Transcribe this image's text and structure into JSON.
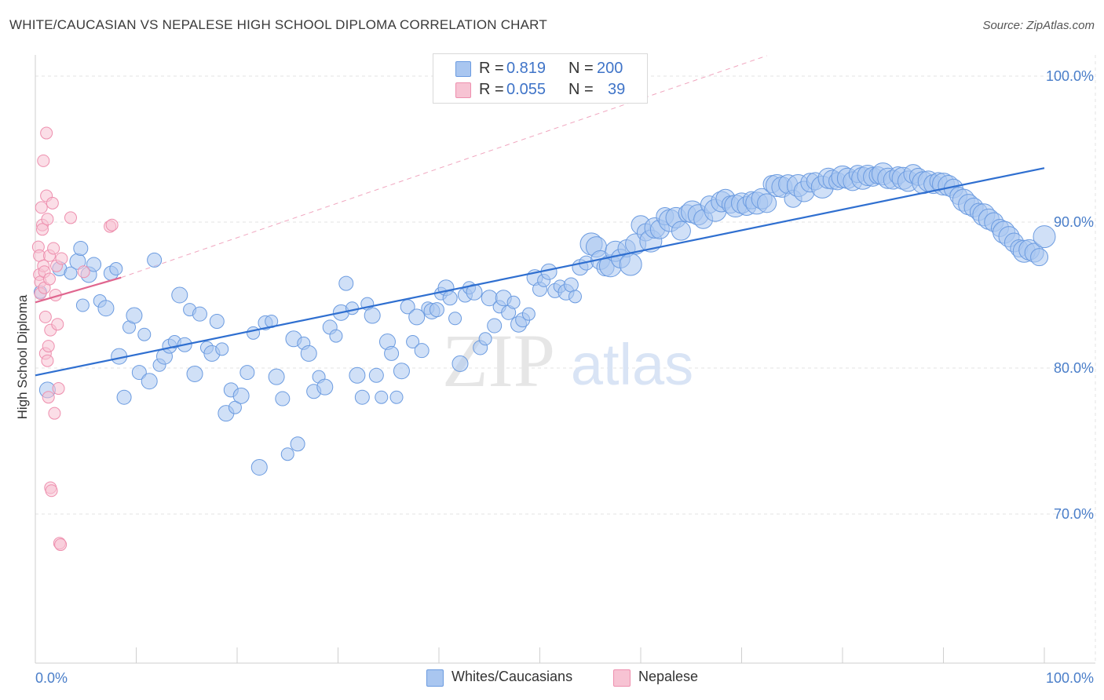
{
  "title": "WHITE/CAUCASIAN VS NEPALESE HIGH SCHOOL DIPLOMA CORRELATION CHART",
  "source": "Source: ZipAtlas.com",
  "watermark": {
    "zip": "ZIP",
    "atlas": "atlas"
  },
  "legend": {
    "rows": [
      {
        "r_label": "R =",
        "r_value": "0.819",
        "n_label": "N =",
        "n_value": "200",
        "color": "#7aa6e6"
      },
      {
        "r_label": "R =",
        "r_value": "0.055",
        "n_label": "N =",
        "n_value": "39",
        "color": "#f2a3bd"
      }
    ]
  },
  "bottom_legend": [
    "Whites/Caucasians",
    "Nepalese"
  ],
  "colors": {
    "blue_fill": "#a9c6f0",
    "blue_stroke": "#6b9be0",
    "blue_line": "#2f6fd0",
    "pink_fill": "#f7c3d3",
    "pink_stroke": "#ee8fae",
    "pink_line": "#e0668f",
    "grid": "#e3e3e3",
    "tick_text": "#4a7ec9"
  },
  "chart_data": {
    "type": "scatter",
    "title": "WHITE/CAUCASIAN VS NEPALESE HIGH SCHOOL DIPLOMA CORRELATION CHART",
    "xlabel": "",
    "ylabel": "High School Diploma",
    "xlim": [
      0,
      100
    ],
    "ylim": [
      60,
      101.5
    ],
    "x_tick_labels": [
      "0.0%",
      "100.0%"
    ],
    "y_ticks": [
      70,
      80,
      90,
      100
    ],
    "y_tick_labels": [
      "70.0%",
      "80.0%",
      "90.0%",
      "100.0%"
    ],
    "grid": true,
    "legend_position": "top-center",
    "series": [
      {
        "name": "Whites/Caucasians",
        "r": 0.819,
        "n": 200,
        "trend": {
          "x": [
            0,
            100
          ],
          "y": [
            79.5,
            93.7
          ]
        },
        "points": [
          [
            0.5,
            85.2
          ],
          [
            1.2,
            78.5
          ],
          [
            2.4,
            86.8
          ],
          [
            3.5,
            86.5
          ],
          [
            4.2,
            87.3
          ],
          [
            4.5,
            88.2
          ],
          [
            4.7,
            84.3
          ],
          [
            5.3,
            86.4
          ],
          [
            5.8,
            87.1
          ],
          [
            6.4,
            84.6
          ],
          [
            7.0,
            84.1
          ],
          [
            7.5,
            86.5
          ],
          [
            8.0,
            86.8
          ],
          [
            8.3,
            80.8
          ],
          [
            8.8,
            78.0
          ],
          [
            9.3,
            82.8
          ],
          [
            9.8,
            83.6
          ],
          [
            10.3,
            79.7
          ],
          [
            10.8,
            82.3
          ],
          [
            11.3,
            79.1
          ],
          [
            11.8,
            87.4
          ],
          [
            12.3,
            80.2
          ],
          [
            12.8,
            80.8
          ],
          [
            13.3,
            81.5
          ],
          [
            13.8,
            81.8
          ],
          [
            14.3,
            85.0
          ],
          [
            14.8,
            81.6
          ],
          [
            15.3,
            84.0
          ],
          [
            15.8,
            79.6
          ],
          [
            16.3,
            83.7
          ],
          [
            17.0,
            81.4
          ],
          [
            17.5,
            81.0
          ],
          [
            18.0,
            83.2
          ],
          [
            18.5,
            81.3
          ],
          [
            18.9,
            76.9
          ],
          [
            19.4,
            78.5
          ],
          [
            19.8,
            77.3
          ],
          [
            20.4,
            78.1
          ],
          [
            21.0,
            79.7
          ],
          [
            21.6,
            82.4
          ],
          [
            22.2,
            73.2
          ],
          [
            22.8,
            83.1
          ],
          [
            23.4,
            83.2
          ],
          [
            23.9,
            79.4
          ],
          [
            24.5,
            77.9
          ],
          [
            25.0,
            74.1
          ],
          [
            25.6,
            82.0
          ],
          [
            26.0,
            74.8
          ],
          [
            26.6,
            81.7
          ],
          [
            27.1,
            81.0
          ],
          [
            27.6,
            78.4
          ],
          [
            28.1,
            79.4
          ],
          [
            28.7,
            78.7
          ],
          [
            29.2,
            82.8
          ],
          [
            29.8,
            82.2
          ],
          [
            30.3,
            83.8
          ],
          [
            30.8,
            85.8
          ],
          [
            31.4,
            84.1
          ],
          [
            31.9,
            79.5
          ],
          [
            32.4,
            78.0
          ],
          [
            32.9,
            84.4
          ],
          [
            33.4,
            83.6
          ],
          [
            33.8,
            79.5
          ],
          [
            34.3,
            78.0
          ],
          [
            34.9,
            81.8
          ],
          [
            35.3,
            81.0
          ],
          [
            35.8,
            78.0
          ],
          [
            36.3,
            79.8
          ],
          [
            36.9,
            84.2
          ],
          [
            37.4,
            81.8
          ],
          [
            37.8,
            83.5
          ],
          [
            38.3,
            81.2
          ],
          [
            38.9,
            84.1
          ],
          [
            39.3,
            83.9
          ],
          [
            39.8,
            84.0
          ],
          [
            40.2,
            85.1
          ],
          [
            40.7,
            85.5
          ],
          [
            41.1,
            84.8
          ],
          [
            41.6,
            83.4
          ],
          [
            42.1,
            80.3
          ],
          [
            42.6,
            85.0
          ],
          [
            43.0,
            85.5
          ],
          [
            43.5,
            85.2
          ],
          [
            44.1,
            81.4
          ],
          [
            44.6,
            82.0
          ],
          [
            45.0,
            84.8
          ],
          [
            45.5,
            82.9
          ],
          [
            46.0,
            84.2
          ],
          [
            46.4,
            84.8
          ],
          [
            46.9,
            83.8
          ],
          [
            47.4,
            84.5
          ],
          [
            47.9,
            83.0
          ],
          [
            48.3,
            83.3
          ],
          [
            48.9,
            83.7
          ],
          [
            49.5,
            86.2
          ],
          [
            50.0,
            85.4
          ],
          [
            50.4,
            86.0
          ],
          [
            50.9,
            86.6
          ],
          [
            51.5,
            85.3
          ],
          [
            52.0,
            85.6
          ],
          [
            52.6,
            85.2
          ],
          [
            53.1,
            85.7
          ],
          [
            53.5,
            84.9
          ],
          [
            54.0,
            86.9
          ],
          [
            54.6,
            87.2
          ],
          [
            55.1,
            88.5
          ],
          [
            55.6,
            88.3
          ],
          [
            56.0,
            87.4
          ],
          [
            56.5,
            86.9
          ],
          [
            57.0,
            87.0
          ],
          [
            57.5,
            88.0
          ],
          [
            58.0,
            87.5
          ],
          [
            58.6,
            88.2
          ],
          [
            59.0,
            87.1
          ],
          [
            59.5,
            88.5
          ],
          [
            60.0,
            89.8
          ],
          [
            60.5,
            89.3
          ],
          [
            61.0,
            88.7
          ],
          [
            61.4,
            89.6
          ],
          [
            61.9,
            89.5
          ],
          [
            62.4,
            90.4
          ],
          [
            62.9,
            90.1
          ],
          [
            63.5,
            90.3
          ],
          [
            64.0,
            89.4
          ],
          [
            64.6,
            90.6
          ],
          [
            65.1,
            90.7
          ],
          [
            65.7,
            90.5
          ],
          [
            66.2,
            90.2
          ],
          [
            66.8,
            91.2
          ],
          [
            67.4,
            90.8
          ],
          [
            68.0,
            91.4
          ],
          [
            68.4,
            91.6
          ],
          [
            68.9,
            91.2
          ],
          [
            69.4,
            91.1
          ],
          [
            70.0,
            91.3
          ],
          [
            70.5,
            91.1
          ],
          [
            71.0,
            91.5
          ],
          [
            71.5,
            91.3
          ],
          [
            72.0,
            91.6
          ],
          [
            72.5,
            91.3
          ],
          [
            73.0,
            92.6
          ],
          [
            73.5,
            92.5
          ],
          [
            74.0,
            92.4
          ],
          [
            74.6,
            92.6
          ],
          [
            75.1,
            91.6
          ],
          [
            75.6,
            92.5
          ],
          [
            76.2,
            92.1
          ],
          [
            76.8,
            92.7
          ],
          [
            77.3,
            92.8
          ],
          [
            78.0,
            92.4
          ],
          [
            78.6,
            93.0
          ],
          [
            79.0,
            92.9
          ],
          [
            79.5,
            92.8
          ],
          [
            80.0,
            93.1
          ],
          [
            80.5,
            93.0
          ],
          [
            81.0,
            92.8
          ],
          [
            81.5,
            93.3
          ],
          [
            82.0,
            93.0
          ],
          [
            82.5,
            93.2
          ],
          [
            83.0,
            93.1
          ],
          [
            83.5,
            93.2
          ],
          [
            84.0,
            93.3
          ],
          [
            84.5,
            93.0
          ],
          [
            85.0,
            92.9
          ],
          [
            85.5,
            93.2
          ],
          [
            86.0,
            93.0
          ],
          [
            86.5,
            92.8
          ],
          [
            87.0,
            93.3
          ],
          [
            87.5,
            93.1
          ],
          [
            88.0,
            92.7
          ],
          [
            88.5,
            92.8
          ],
          [
            89.0,
            92.6
          ],
          [
            89.5,
            92.8
          ],
          [
            90.0,
            92.6
          ],
          [
            90.5,
            92.5
          ],
          [
            91.0,
            92.3
          ],
          [
            91.5,
            91.8
          ],
          [
            92.0,
            91.5
          ],
          [
            92.5,
            91.2
          ],
          [
            93.0,
            91.0
          ],
          [
            93.5,
            90.7
          ],
          [
            94.0,
            90.5
          ],
          [
            94.5,
            90.2
          ],
          [
            95.0,
            90.0
          ],
          [
            95.6,
            89.6
          ],
          [
            96.0,
            89.3
          ],
          [
            96.5,
            89.0
          ],
          [
            97.0,
            88.6
          ],
          [
            97.5,
            88.2
          ],
          [
            98.0,
            88.0
          ],
          [
            98.5,
            88.1
          ],
          [
            99.0,
            87.9
          ],
          [
            99.5,
            87.6
          ],
          [
            100.0,
            89.0
          ]
        ]
      },
      {
        "name": "Nepalese",
        "r": 0.055,
        "n": 39,
        "trend": {
          "x": [
            0,
            8.5
          ],
          "y": [
            84.5,
            86.2
          ]
        },
        "points": [
          [
            0.3,
            88.3
          ],
          [
            0.4,
            87.7
          ],
          [
            0.4,
            86.4
          ],
          [
            0.5,
            85.9
          ],
          [
            0.5,
            85.1
          ],
          [
            0.6,
            91.0
          ],
          [
            0.7,
            89.8
          ],
          [
            0.7,
            89.5
          ],
          [
            0.8,
            94.2
          ],
          [
            0.8,
            87.0
          ],
          [
            0.9,
            86.6
          ],
          [
            0.9,
            85.5
          ],
          [
            1.0,
            83.5
          ],
          [
            1.0,
            81.0
          ],
          [
            1.1,
            96.1
          ],
          [
            1.1,
            91.8
          ],
          [
            1.2,
            90.2
          ],
          [
            1.2,
            80.5
          ],
          [
            1.3,
            78.0
          ],
          [
            1.3,
            81.5
          ],
          [
            1.4,
            87.7
          ],
          [
            1.4,
            86.1
          ],
          [
            1.5,
            82.6
          ],
          [
            1.5,
            71.8
          ],
          [
            1.6,
            71.6
          ],
          [
            1.7,
            91.3
          ],
          [
            1.8,
            88.2
          ],
          [
            1.9,
            76.9
          ],
          [
            2.0,
            85.0
          ],
          [
            2.1,
            87.0
          ],
          [
            2.2,
            83.0
          ],
          [
            2.3,
            78.6
          ],
          [
            2.4,
            68.0
          ],
          [
            2.5,
            67.9
          ],
          [
            2.6,
            87.5
          ],
          [
            3.5,
            90.3
          ],
          [
            4.8,
            86.6
          ],
          [
            7.4,
            89.7
          ],
          [
            7.6,
            89.8
          ]
        ]
      }
    ]
  }
}
